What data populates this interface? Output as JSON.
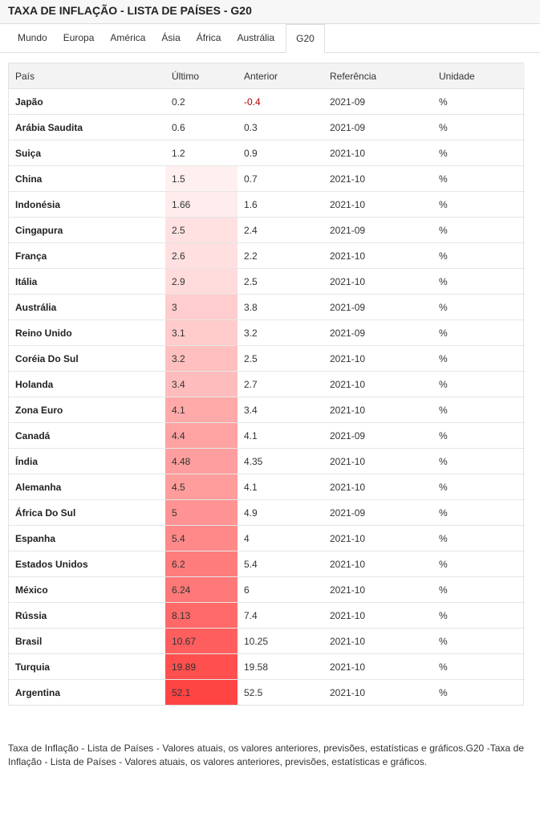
{
  "header": {
    "title": "TAXA DE INFLAÇÃO - LISTA DE PAÍSES - G20"
  },
  "tabs": [
    {
      "label": "Mundo",
      "active": false
    },
    {
      "label": "Europa",
      "active": false
    },
    {
      "label": "América",
      "active": false
    },
    {
      "label": "Ásia",
      "active": false
    },
    {
      "label": "África",
      "active": false
    },
    {
      "label": "Austrália",
      "active": false
    },
    {
      "label": "G20",
      "active": true
    }
  ],
  "table": {
    "columns": [
      "País",
      "Último",
      "Anterior",
      "Referência",
      "Unidade"
    ],
    "highlight_color": "#ff4444",
    "negative_color": "#b00000",
    "rows": [
      {
        "country": "Japão",
        "last": "0.2",
        "previous": "-0.4",
        "reference": "2021-09",
        "unit": "%",
        "shade": 0
      },
      {
        "country": "Arábia Saudita",
        "last": "0.6",
        "previous": "0.3",
        "reference": "2021-09",
        "unit": "%",
        "shade": 0
      },
      {
        "country": "Suiça",
        "last": "1.2",
        "previous": "0.9",
        "reference": "2021-10",
        "unit": "%",
        "shade": 0
      },
      {
        "country": "China",
        "last": "1.5",
        "previous": "0.7",
        "reference": "2021-10",
        "unit": "%",
        "shade": 0.08
      },
      {
        "country": "Indonésia",
        "last": "1.66",
        "previous": "1.6",
        "reference": "2021-10",
        "unit": "%",
        "shade": 0.1
      },
      {
        "country": "Cingapura",
        "last": "2.5",
        "previous": "2.4",
        "reference": "2021-09",
        "unit": "%",
        "shade": 0.16
      },
      {
        "country": "França",
        "last": "2.6",
        "previous": "2.2",
        "reference": "2021-10",
        "unit": "%",
        "shade": 0.17
      },
      {
        "country": "Itália",
        "last": "2.9",
        "previous": "2.5",
        "reference": "2021-10",
        "unit": "%",
        "shade": 0.19
      },
      {
        "country": "Austrália",
        "last": "3",
        "previous": "3.8",
        "reference": "2021-09",
        "unit": "%",
        "shade": 0.27
      },
      {
        "country": "Reino Unido",
        "last": "3.1",
        "previous": "3.2",
        "reference": "2021-09",
        "unit": "%",
        "shade": 0.28
      },
      {
        "country": "Coréia Do Sul",
        "last": "3.2",
        "previous": "2.5",
        "reference": "2021-10",
        "unit": "%",
        "shade": 0.34
      },
      {
        "country": "Holanda",
        "last": "3.4",
        "previous": "2.7",
        "reference": "2021-10",
        "unit": "%",
        "shade": 0.36
      },
      {
        "country": "Zona Euro",
        "last": "4.1",
        "previous": "3.4",
        "reference": "2021-10",
        "unit": "%",
        "shade": 0.46
      },
      {
        "country": "Canadá",
        "last": "4.4",
        "previous": "4.1",
        "reference": "2021-09",
        "unit": "%",
        "shade": 0.5
      },
      {
        "country": "Índia",
        "last": "4.48",
        "previous": "4.35",
        "reference": "2021-10",
        "unit": "%",
        "shade": 0.52
      },
      {
        "country": "Alemanha",
        "last": "4.5",
        "previous": "4.1",
        "reference": "2021-10",
        "unit": "%",
        "shade": 0.53
      },
      {
        "country": "África Do Sul",
        "last": "5",
        "previous": "4.9",
        "reference": "2021-09",
        "unit": "%",
        "shade": 0.58
      },
      {
        "country": "Espanha",
        "last": "5.4",
        "previous": "4",
        "reference": "2021-10",
        "unit": "%",
        "shade": 0.63
      },
      {
        "country": "Estados Unidos",
        "last": "6.2",
        "previous": "5.4",
        "reference": "2021-10",
        "unit": "%",
        "shade": 0.7
      },
      {
        "country": "México",
        "last": "6.24",
        "previous": "6",
        "reference": "2021-10",
        "unit": "%",
        "shade": 0.72
      },
      {
        "country": "Rússia",
        "last": "8.13",
        "previous": "7.4",
        "reference": "2021-10",
        "unit": "%",
        "shade": 0.8
      },
      {
        "country": "Brasil",
        "last": "10.67",
        "previous": "10.25",
        "reference": "2021-10",
        "unit": "%",
        "shade": 0.86
      },
      {
        "country": "Turquia",
        "last": "19.89",
        "previous": "19.58",
        "reference": "2021-10",
        "unit": "%",
        "shade": 0.94
      },
      {
        "country": "Argentina",
        "last": "52.1",
        "previous": "52.5",
        "reference": "2021-10",
        "unit": "%",
        "shade": 1
      }
    ]
  },
  "footer": {
    "text": "Taxa de Inflação - Lista de Países - Valores atuais, os valores anteriores, previsões, estatísticas e gráficos.G20 -Taxa de Inflação - Lista de Países - Valores atuais, os valores anteriores, previsões, estatísticas e gráficos."
  }
}
